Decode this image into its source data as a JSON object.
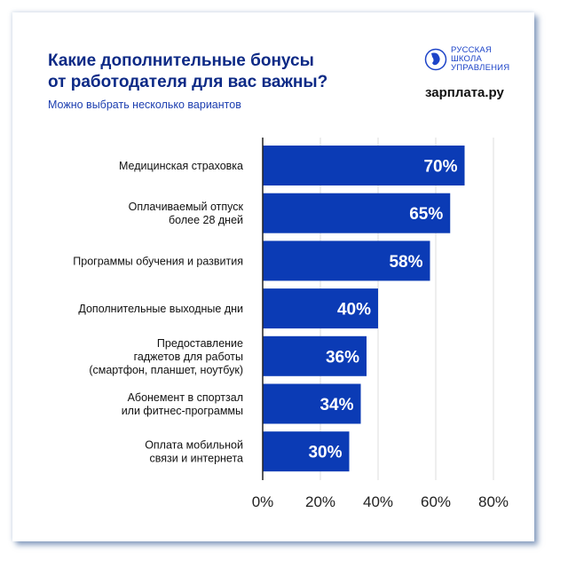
{
  "header": {
    "title_line1": "Какие дополнительные бонусы",
    "title_line2": "от работодателя для вас важны?",
    "subtitle": "Можно выбрать несколько вариантов",
    "logo_rsu": [
      "РУССКАЯ",
      "ШКОЛА",
      "УПРАВЛЕНИЯ"
    ],
    "logo_zarplata": "зарплата.ру"
  },
  "colors": {
    "bar": "#0b3bb5",
    "title": "#0d2a86",
    "grid": "#dddddd"
  },
  "chart_data": {
    "type": "bar",
    "orientation": "horizontal",
    "categories": [
      [
        "Медицинская страховка"
      ],
      [
        "Оплачиваемый отпуск",
        "более 28 дней"
      ],
      [
        "Программы обучения и развития"
      ],
      [
        "Дополнительные выходные дни"
      ],
      [
        "Предоставление",
        "гаджетов для работы",
        "(смартфон, планшет, ноутбук)"
      ],
      [
        "Абонемент в спортзал",
        "или фитнес-программы"
      ],
      [
        "Оплата мобильной",
        "связи и интернета"
      ]
    ],
    "values": [
      70,
      65,
      58,
      40,
      36,
      34,
      30
    ],
    "data_labels": [
      "70%",
      "65%",
      "58%",
      "40%",
      "36%",
      "34%",
      "30%"
    ],
    "xlim": [
      0,
      80
    ],
    "xticks": [
      "0%",
      "20%",
      "40%",
      "60%",
      "80%"
    ],
    "grid": true
  }
}
